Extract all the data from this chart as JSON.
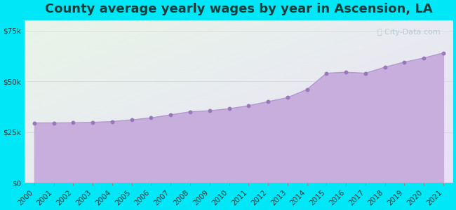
{
  "title": "County average yearly wages by year in Ascension, LA",
  "years": [
    2000,
    2001,
    2002,
    2003,
    2004,
    2005,
    2006,
    2007,
    2008,
    2009,
    2010,
    2011,
    2012,
    2013,
    2014,
    2015,
    2016,
    2017,
    2018,
    2019,
    2020,
    2021
  ],
  "wages": [
    29500,
    29500,
    29600,
    29800,
    30200,
    31000,
    32000,
    33500,
    35000,
    35500,
    36500,
    38000,
    40000,
    42000,
    46000,
    54000,
    54500,
    54000,
    57000,
    59500,
    61500,
    64000
  ],
  "line_color": "#b399cc",
  "fill_color": "#c8aedd",
  "fill_alpha": 1.0,
  "marker_color": "#9977bb",
  "marker_size": 18,
  "background_outer": "#00e8f8",
  "bg_top_left": "#e8f5e8",
  "bg_bottom_right": "#e8e0f8",
  "yticks": [
    0,
    25000,
    50000,
    75000
  ],
  "ytick_labels": [
    "$0",
    "$25k",
    "$50k",
    "$75k"
  ],
  "ylim": [
    0,
    80000
  ],
  "watermark": "City-Data.com",
  "title_fontsize": 13,
  "title_color": "#1a3a3a",
  "tick_fontsize": 7.5,
  "tick_color": "#333333"
}
